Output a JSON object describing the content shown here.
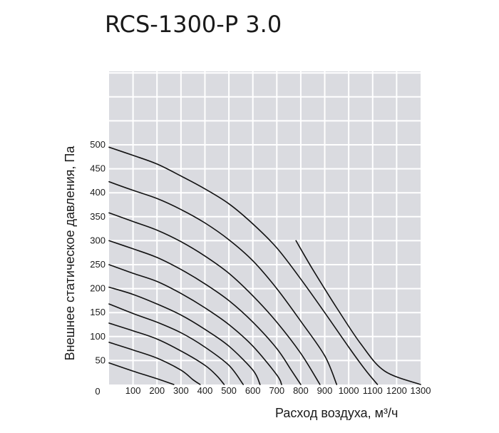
{
  "chart_data": {
    "type": "line",
    "title": "RCS-1300-P 3.0",
    "xlabel": "Расход воздуха, м³/ч",
    "ylabel": "Внешнее статическое давления, Па",
    "xlim": [
      0,
      1300
    ],
    "ylim": [
      0,
      500
    ],
    "x_ticks": [
      "0",
      "100",
      "200",
      "300",
      "400",
      "500",
      "600",
      "700",
      "800",
      "900",
      "1000",
      "1100",
      "1200",
      "1300"
    ],
    "y_ticks": [
      "50",
      "100",
      "150",
      "200",
      "250",
      "300",
      "350",
      "400",
      "450",
      "500"
    ],
    "grid": true,
    "background_color": "#dadbe0",
    "line_color": "#111111",
    "series": [
      {
        "values": [
          [
            0,
            45
          ],
          [
            100,
            28
          ],
          [
            200,
            12
          ],
          [
            270,
            0
          ]
        ]
      },
      {
        "values": [
          [
            0,
            88
          ],
          [
            100,
            72
          ],
          [
            200,
            55
          ],
          [
            300,
            30
          ],
          [
            350,
            10
          ],
          [
            380,
            0
          ]
        ]
      },
      {
        "values": [
          [
            0,
            128
          ],
          [
            100,
            112
          ],
          [
            200,
            95
          ],
          [
            300,
            70
          ],
          [
            400,
            40
          ],
          [
            450,
            18
          ],
          [
            480,
            0
          ]
        ]
      },
      {
        "values": [
          [
            0,
            168
          ],
          [
            100,
            148
          ],
          [
            200,
            130
          ],
          [
            300,
            108
          ],
          [
            400,
            78
          ],
          [
            500,
            40
          ],
          [
            560,
            0
          ]
        ]
      },
      {
        "values": [
          [
            0,
            203
          ],
          [
            100,
            188
          ],
          [
            200,
            168
          ],
          [
            300,
            145
          ],
          [
            400,
            115
          ],
          [
            500,
            80
          ],
          [
            600,
            30
          ],
          [
            630,
            0
          ]
        ]
      },
      {
        "values": [
          [
            0,
            250
          ],
          [
            100,
            232
          ],
          [
            200,
            215
          ],
          [
            300,
            190
          ],
          [
            400,
            160
          ],
          [
            500,
            125
          ],
          [
            600,
            80
          ],
          [
            700,
            20
          ],
          [
            720,
            0
          ]
        ]
      },
      {
        "values": [
          [
            0,
            300
          ],
          [
            100,
            283
          ],
          [
            200,
            265
          ],
          [
            300,
            240
          ],
          [
            400,
            210
          ],
          [
            500,
            175
          ],
          [
            600,
            130
          ],
          [
            700,
            75
          ],
          [
            760,
            30
          ],
          [
            800,
            0
          ]
        ]
      },
      {
        "values": [
          [
            0,
            358
          ],
          [
            100,
            340
          ],
          [
            200,
            322
          ],
          [
            300,
            298
          ],
          [
            400,
            268
          ],
          [
            500,
            232
          ],
          [
            600,
            185
          ],
          [
            700,
            130
          ],
          [
            800,
            65
          ],
          [
            880,
            0
          ]
        ]
      },
      {
        "values": [
          [
            0,
            423
          ],
          [
            100,
            405
          ],
          [
            200,
            388
          ],
          [
            300,
            365
          ],
          [
            400,
            337
          ],
          [
            500,
            302
          ],
          [
            600,
            258
          ],
          [
            700,
            200
          ],
          [
            800,
            132
          ],
          [
            900,
            60
          ],
          [
            950,
            0
          ]
        ]
      },
      {
        "values": [
          [
            0,
            495
          ],
          [
            100,
            478
          ],
          [
            200,
            460
          ],
          [
            300,
            435
          ],
          [
            400,
            408
          ],
          [
            500,
            377
          ],
          [
            600,
            335
          ],
          [
            700,
            285
          ],
          [
            800,
            220
          ],
          [
            900,
            150
          ],
          [
            1000,
            78
          ],
          [
            1070,
            30
          ],
          [
            1120,
            0
          ]
        ]
      },
      {
        "values": [
          [
            780,
            300
          ],
          [
            850,
            240
          ],
          [
            950,
            160
          ],
          [
            1050,
            85
          ],
          [
            1150,
            28
          ],
          [
            1300,
            0
          ]
        ]
      }
    ]
  }
}
